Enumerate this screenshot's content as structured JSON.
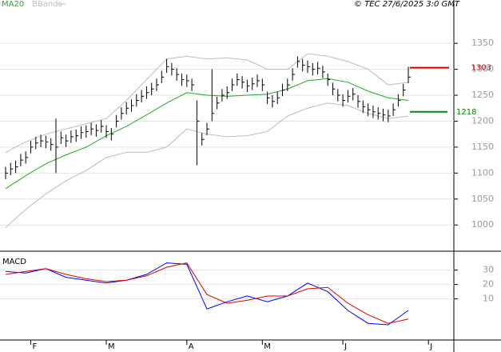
{
  "header": {
    "source": "© TEC 27/6/2025 3:0 GMT"
  },
  "chart_data": [
    {
      "type": "ohlc",
      "ylim": [
        951,
        1415
      ],
      "yticks": [
        1000,
        1050,
        1100,
        1150,
        1200,
        1250,
        1300,
        1350
      ],
      "grid": true,
      "bar_color": "#000000",
      "high": [
        1112,
        1120,
        1124,
        1137,
        1142,
        1162,
        1170,
        1174,
        1172,
        1167,
        1205,
        1180,
        1174,
        1182,
        1184,
        1190,
        1192,
        1197,
        1194,
        1202,
        1192,
        1187,
        1212,
        1227,
        1237,
        1242,
        1252,
        1260,
        1267,
        1274,
        1282,
        1297,
        1320,
        1312,
        1302,
        1292,
        1290,
        1282,
        1240,
        1177,
        1197,
        1300,
        1247,
        1262,
        1267,
        1282,
        1292,
        1287,
        1280,
        1284,
        1290,
        1282,
        1257,
        1250,
        1257,
        1272,
        1282,
        1302,
        1325,
        1320,
        1317,
        1312,
        1314,
        1307,
        1292,
        1274,
        1262,
        1252,
        1260,
        1264,
        1250,
        1240,
        1234,
        1230,
        1227,
        1224,
        1222,
        1234,
        1252,
        1272,
        1305
      ],
      "low": [
        1088,
        1096,
        1100,
        1113,
        1118,
        1138,
        1146,
        1150,
        1148,
        1143,
        1100,
        1156,
        1150,
        1158,
        1160,
        1166,
        1168,
        1173,
        1170,
        1178,
        1168,
        1163,
        1188,
        1203,
        1213,
        1218,
        1228,
        1236,
        1243,
        1250,
        1258,
        1273,
        1293,
        1288,
        1278,
        1268,
        1266,
        1258,
        1115,
        1153,
        1173,
        1200,
        1223,
        1238,
        1243,
        1258,
        1268,
        1263,
        1256,
        1260,
        1266,
        1258,
        1233,
        1226,
        1233,
        1248,
        1258,
        1278,
        1303,
        1296,
        1293,
        1288,
        1290,
        1283,
        1268,
        1250,
        1238,
        1228,
        1236,
        1240,
        1226,
        1216,
        1210,
        1206,
        1203,
        1200,
        1198,
        1210,
        1228,
        1248,
        1273
      ],
      "close": [
        1100,
        1108,
        1112,
        1125,
        1130,
        1150,
        1158,
        1162,
        1160,
        1155,
        1150,
        1168,
        1162,
        1170,
        1172,
        1178,
        1180,
        1185,
        1182,
        1190,
        1180,
        1175,
        1200,
        1215,
        1225,
        1230,
        1240,
        1248,
        1255,
        1262,
        1270,
        1285,
        1305,
        1300,
        1290,
        1280,
        1278,
        1270,
        1200,
        1165,
        1185,
        1215,
        1235,
        1250,
        1255,
        1270,
        1280,
        1275,
        1268,
        1272,
        1278,
        1270,
        1245,
        1238,
        1245,
        1260,
        1270,
        1290,
        1315,
        1308,
        1305,
        1300,
        1302,
        1295,
        1280,
        1262,
        1250,
        1240,
        1248,
        1252,
        1238,
        1228,
        1222,
        1218,
        1215,
        1212,
        1210,
        1222,
        1240,
        1260,
        1285
      ],
      "overlay_x": [
        0,
        4,
        8,
        12,
        16,
        20,
        24,
        28,
        32,
        36,
        40,
        44,
        48,
        52,
        56,
        60,
        64,
        68,
        72,
        76,
        80
      ],
      "series": [
        {
          "name": "MA20",
          "color": "#22aa22",
          "values": [
            1070,
            1095,
            1118,
            1135,
            1150,
            1172,
            1190,
            1212,
            1235,
            1255,
            1250,
            1248,
            1250,
            1252,
            1262,
            1278,
            1282,
            1275,
            1258,
            1245,
            1240
          ]
        },
        {
          "name": "BBands",
          "color": "#bbbbbb",
          "upper": [
            1140,
            1160,
            1175,
            1185,
            1195,
            1205,
            1240,
            1280,
            1320,
            1325,
            1320,
            1322,
            1318,
            1300,
            1300,
            1330,
            1325,
            1315,
            1300,
            1270,
            1275
          ],
          "lower": [
            995,
            1030,
            1060,
            1085,
            1105,
            1130,
            1140,
            1140,
            1150,
            1185,
            1175,
            1170,
            1172,
            1180,
            1210,
            1225,
            1235,
            1230,
            1215,
            1205,
            1210
          ]
        }
      ],
      "levels": [
        {
          "value": 1303,
          "color": "#cc0000"
        },
        {
          "value": 1218,
          "color": "#008800"
        }
      ]
    },
    {
      "type": "line",
      "title": "MACD",
      "ylim": [
        -18,
        42
      ],
      "yticks": [
        10,
        20,
        30
      ],
      "grid": true,
      "x": [
        0,
        4,
        8,
        12,
        16,
        20,
        24,
        28,
        32,
        36,
        40,
        44,
        48,
        52,
        56,
        60,
        64,
        68,
        72,
        76,
        80
      ],
      "series": [
        {
          "color": "#0000ff",
          "values": [
            29,
            28,
            31,
            25,
            23,
            21,
            23,
            27,
            35,
            34,
            3,
            8,
            12,
            8,
            12,
            21,
            15,
            2,
            -7,
            -8,
            2
          ]
        },
        {
          "color": "#dd0000",
          "values": [
            27,
            29,
            31,
            27,
            24,
            22,
            23,
            26,
            32,
            35,
            13,
            7,
            9,
            12,
            12,
            17,
            18,
            7,
            -1,
            -7,
            -4
          ]
        }
      ],
      "xticks": [
        {
          "value": 5,
          "label": "F"
        },
        {
          "value": 20,
          "label": "M"
        },
        {
          "value": 36,
          "label": "A"
        },
        {
          "value": 51,
          "label": "M"
        },
        {
          "value": 67,
          "label": "J"
        },
        {
          "value": 84,
          "label": "J"
        }
      ]
    }
  ]
}
